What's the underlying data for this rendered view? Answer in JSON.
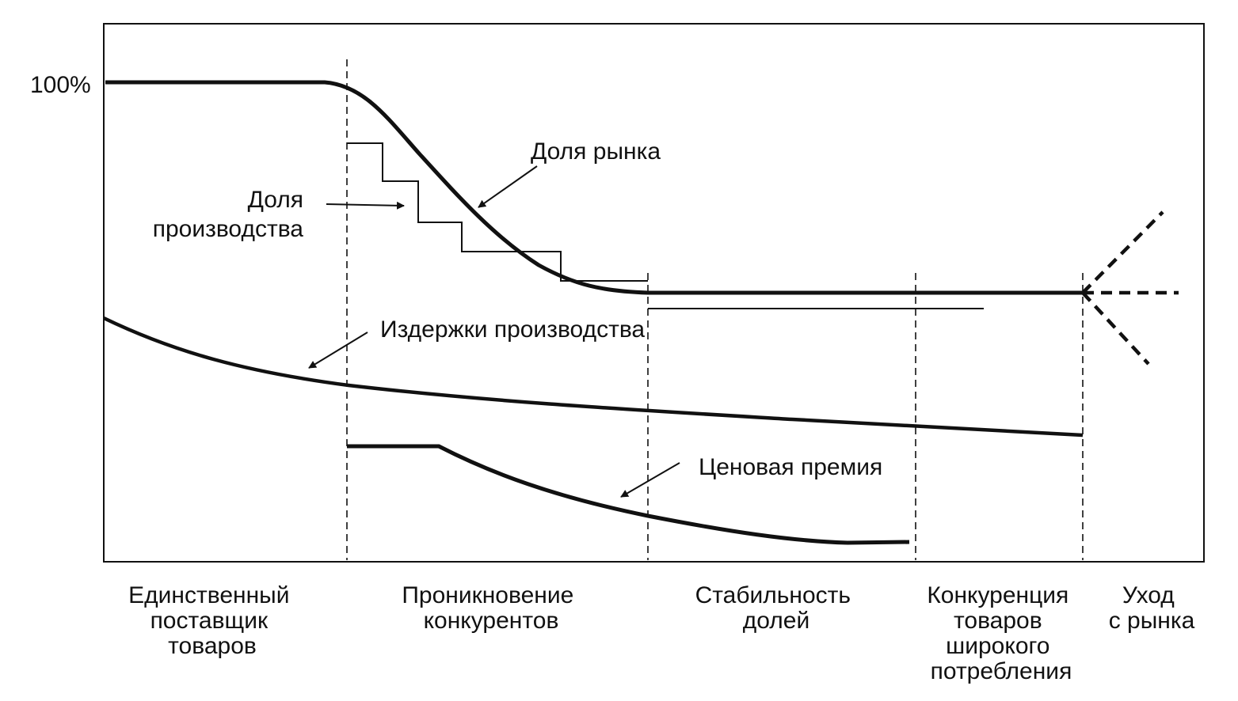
{
  "y_label": "100%",
  "labels": {
    "market_share": "Доля рынка",
    "production_share_line1": "Доля",
    "production_share_line2": "производства",
    "production_costs": "Издержки производства",
    "price_premium": "Ценовая премия"
  },
  "phases": [
    {
      "lines": [
        "Единственный",
        "поставщик",
        "товаров"
      ]
    },
    {
      "lines": [
        "Проникновение",
        "конкурентов"
      ]
    },
    {
      "lines": [
        "Стабильность",
        "долей"
      ]
    },
    {
      "lines": [
        "Конкуренция",
        "товаров",
        "широкого",
        "потребления"
      ]
    },
    {
      "lines": [
        "Уход",
        "с рынка"
      ]
    }
  ],
  "colors": {
    "ink": "#111111",
    "background": "#ffffff"
  }
}
